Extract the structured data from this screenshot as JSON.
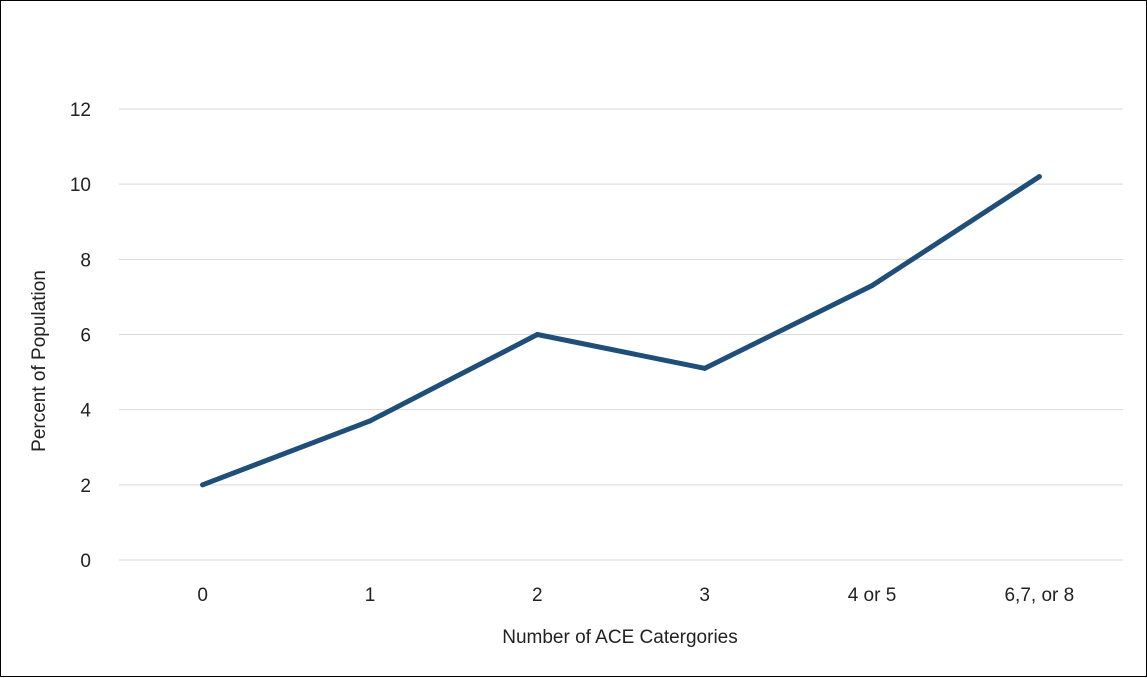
{
  "chart_data": {
    "type": "line",
    "title": "",
    "xlabel": "Number of ACE Catergories",
    "ylabel": "Percent of Population",
    "categories": [
      "0",
      "1",
      "2",
      "3",
      "4 or 5",
      "6,7, or 8"
    ],
    "series": [
      {
        "values": [
          2.0,
          3.7,
          6.0,
          5.1,
          7.3,
          10.2
        ]
      }
    ],
    "ylim": [
      0,
      12
    ],
    "yticks": [
      "0",
      "2",
      "4",
      "6",
      "8",
      "10",
      "12"
    ],
    "grid": true,
    "legend": "none",
    "colors": {
      "line": "#1f4e79",
      "grid": "#d9d9d9",
      "border": "#000000"
    }
  }
}
